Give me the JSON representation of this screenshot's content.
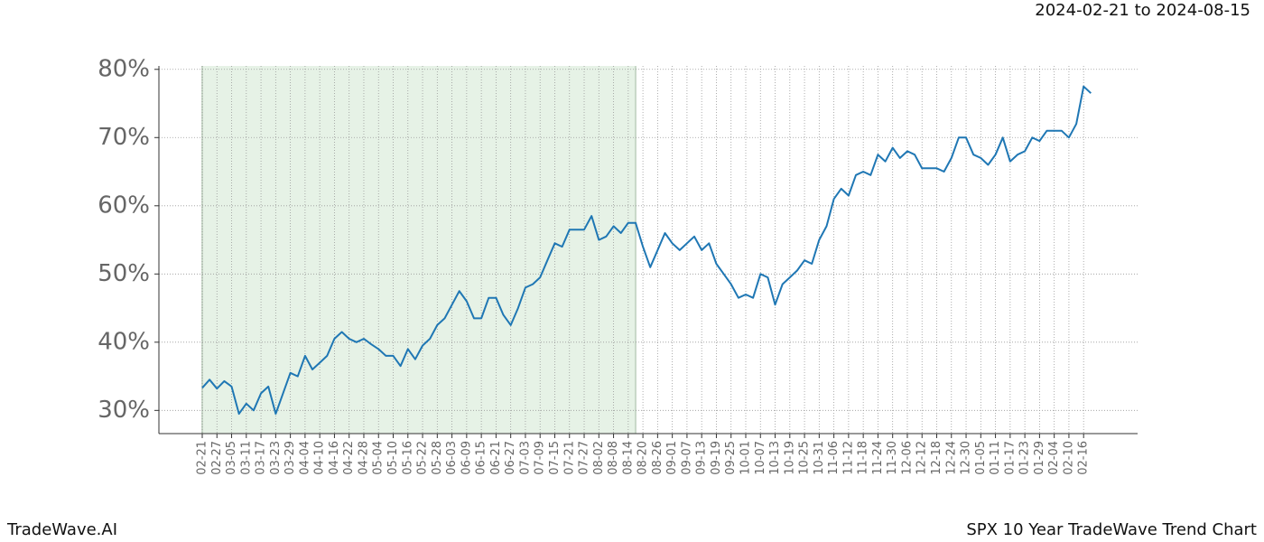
{
  "chart_data": {
    "type": "line",
    "title": "2024-02-21 to 2024-08-15",
    "footer_left": "TradeWave.AI",
    "footer_right": "SPX 10 Year TradeWave Trend Chart",
    "categories": [
      "02-21",
      null,
      "02-27",
      null,
      "03-05",
      null,
      "03-11",
      null,
      "03-17",
      null,
      "03-23",
      null,
      "03-29",
      null,
      "04-04",
      null,
      "04-10",
      null,
      "04-16",
      null,
      "04-22",
      null,
      "04-28",
      null,
      "05-04",
      null,
      "05-10",
      null,
      "05-16",
      null,
      "05-22",
      null,
      "05-28",
      null,
      "06-03",
      null,
      "06-09",
      null,
      "06-15",
      null,
      "06-21",
      null,
      "06-27",
      null,
      "07-03",
      null,
      "07-09",
      null,
      "07-15",
      null,
      "07-21",
      null,
      "07-27",
      null,
      "08-02",
      null,
      "08-08",
      null,
      "08-14",
      null,
      "08-20",
      null,
      "08-26",
      null,
      "09-01",
      null,
      "09-07",
      null,
      "09-13",
      null,
      "09-19",
      null,
      "09-25",
      null,
      "10-01",
      null,
      "10-07",
      null,
      "10-13",
      null,
      "10-19",
      null,
      "10-25",
      null,
      "10-31",
      null,
      "11-06",
      null,
      "11-12",
      null,
      "11-18",
      null,
      "11-24",
      null,
      "11-30",
      null,
      "12-06",
      null,
      "12-12",
      null,
      "12-18",
      null,
      "12-24",
      null,
      "12-30",
      null,
      "01-05",
      null,
      "01-11",
      null,
      "01-17",
      null,
      "01-23",
      null,
      "01-29",
      null,
      "02-04",
      null,
      "02-10",
      null,
      "02-16",
      null
    ],
    "series": [
      {
        "color": "#1f77b4",
        "values": [
          33.3,
          34.5,
          33.2,
          34.3,
          33.5,
          29.5,
          31,
          30,
          32.5,
          33.5,
          29.5,
          32.5,
          35.5,
          35,
          38,
          36,
          37,
          38,
          40.5,
          41.5,
          40.5,
          40,
          40.5,
          39.7,
          39,
          38,
          38,
          36.5,
          39,
          37.5,
          39.5,
          40.5,
          42.5,
          43.5,
          45.5,
          47.5,
          46,
          43.5,
          43.5,
          46.5,
          46.5,
          44,
          42.5,
          45,
          48,
          48.5,
          49.5,
          52,
          54.5,
          54,
          56.5,
          56.5,
          56.5,
          58.5,
          55,
          55.5,
          57,
          56,
          57.5,
          57.5,
          54,
          51,
          53.5,
          56,
          54.5,
          53.5,
          54.5,
          55.5,
          53.5,
          54.5,
          51.5,
          50,
          48.5,
          46.5,
          47,
          46.5,
          50,
          49.5,
          45.5,
          48.5,
          49.5,
          50.5,
          52,
          51.5,
          55,
          57,
          61,
          62.5,
          61.5,
          64.5,
          65,
          64.5,
          67.5,
          66.5,
          68.5,
          67,
          68,
          67.5,
          65.5,
          65.5,
          65.5,
          65,
          67,
          70,
          70,
          67.5,
          67,
          66,
          67.5,
          70,
          66.5,
          67.5,
          68,
          70,
          69.5,
          71,
          71,
          71,
          70,
          72,
          77.5,
          76.5
        ]
      }
    ],
    "highlight": {
      "from": 0,
      "to": 59,
      "color": "#e6f2e6"
    },
    "ylim": [
      26.6,
      80.5
    ],
    "yticks": [
      {
        "value": 30,
        "label": "30%"
      },
      {
        "value": 40,
        "label": "40%"
      },
      {
        "value": 50,
        "label": "50%"
      },
      {
        "value": 60,
        "label": "60%"
      },
      {
        "value": 70,
        "label": "70%"
      },
      {
        "value": 80,
        "label": "80%"
      }
    ],
    "grid": true
  }
}
